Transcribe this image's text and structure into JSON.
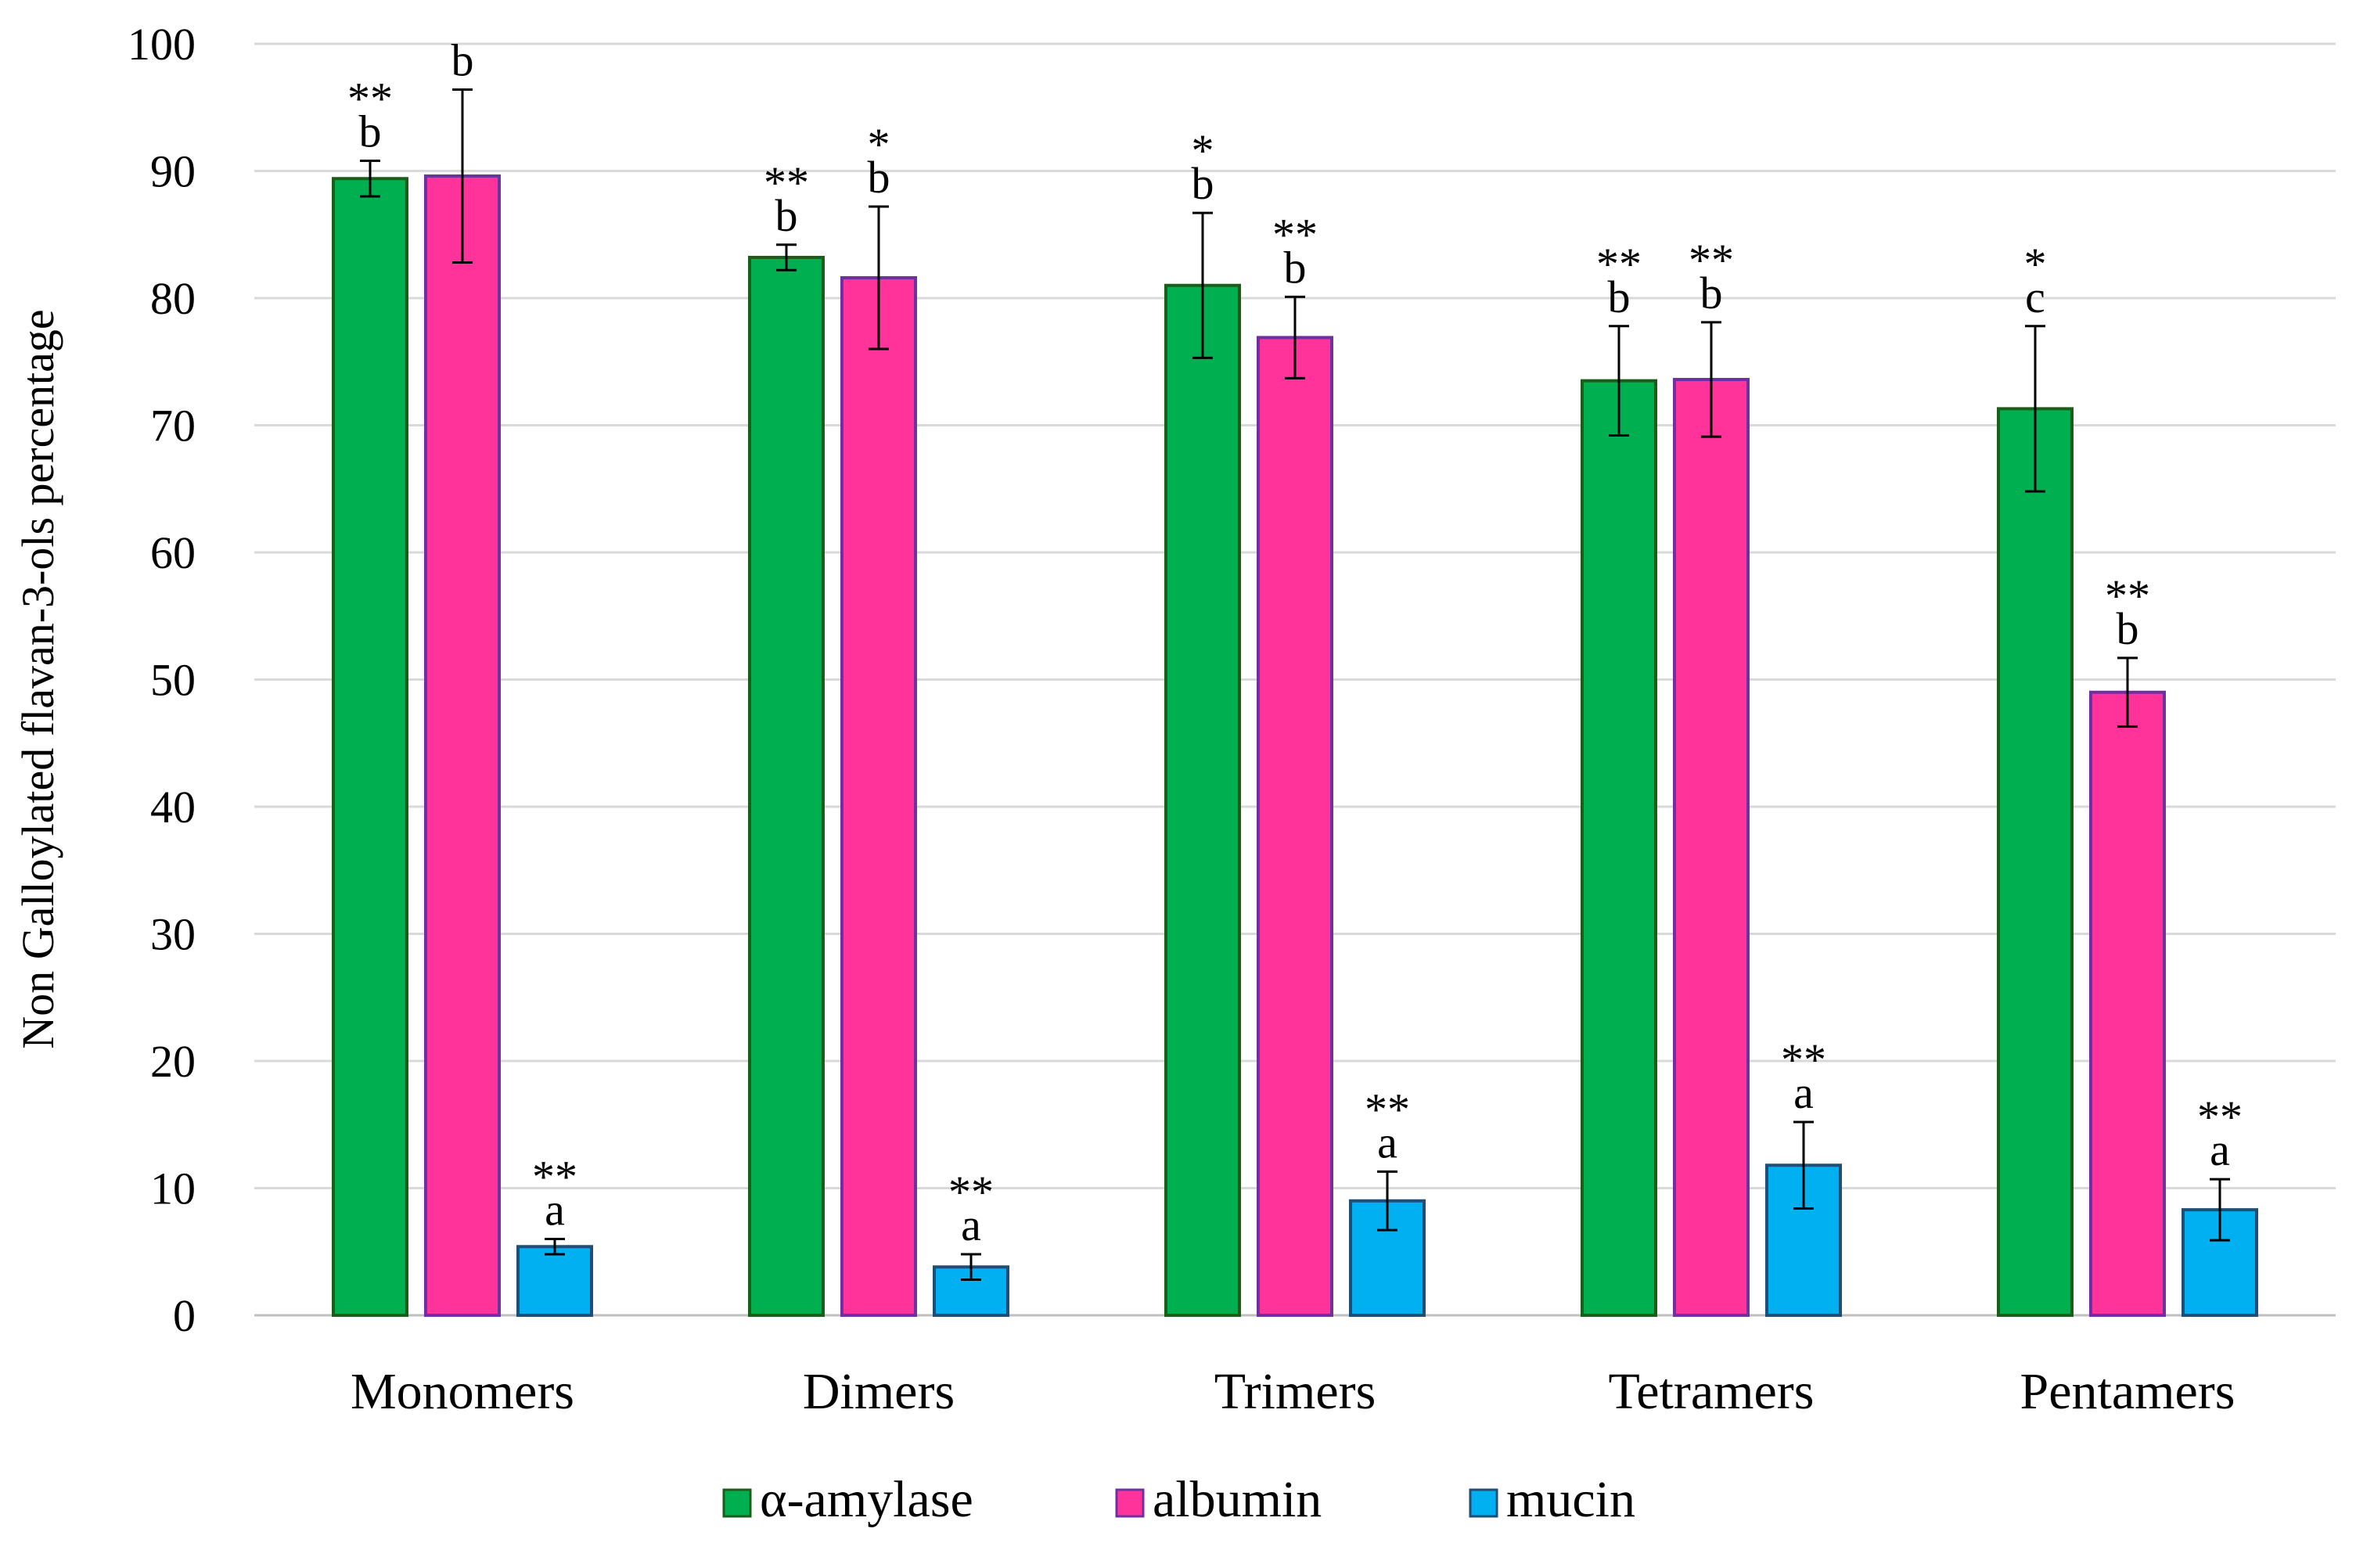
{
  "chart_data": {
    "type": "bar",
    "title": "",
    "xlabel": "",
    "ylabel": "Non Galloylated flavan-3-ols percentage",
    "ylim": [
      0,
      100
    ],
    "yticks": [
      0,
      10,
      20,
      30,
      40,
      50,
      60,
      70,
      80,
      90,
      100
    ],
    "grid": true,
    "legend_position": "bottom",
    "categories": [
      "Monomers",
      "Dimers",
      "Trimers",
      "Tetramers",
      "Pentamers"
    ],
    "series": [
      {
        "name": "α-amylase",
        "color": "#00b050",
        "edge": "#1a5e1a",
        "values": [
          89.4,
          83.2,
          81.0,
          73.5,
          71.3
        ],
        "errors": [
          1.4,
          1.0,
          5.7,
          4.3,
          6.5
        ],
        "stars": [
          "**",
          "**",
          "*",
          "**",
          "*"
        ],
        "letters": [
          "b",
          "b",
          "b",
          "b",
          "c"
        ]
      },
      {
        "name": "albumin",
        "color": "#ff3399",
        "edge": "#7030a0",
        "values": [
          89.6,
          81.6,
          76.9,
          73.6,
          49.0
        ],
        "errors": [
          6.8,
          5.6,
          3.2,
          4.5,
          2.7
        ],
        "stars": [
          "",
          "*",
          "**",
          "**",
          "**"
        ],
        "letters": [
          "b",
          "b",
          "b",
          "b",
          "b"
        ]
      },
      {
        "name": "mucin",
        "color": "#00b0f0",
        "edge": "#1f4e79",
        "values": [
          5.4,
          3.8,
          9.0,
          11.8,
          8.3
        ],
        "errors": [
          0.6,
          1.0,
          2.3,
          3.4,
          2.4
        ],
        "stars": [
          "**",
          "**",
          "**",
          "**",
          "**"
        ],
        "letters": [
          "a",
          "a",
          "a",
          "a",
          "a"
        ]
      }
    ]
  }
}
